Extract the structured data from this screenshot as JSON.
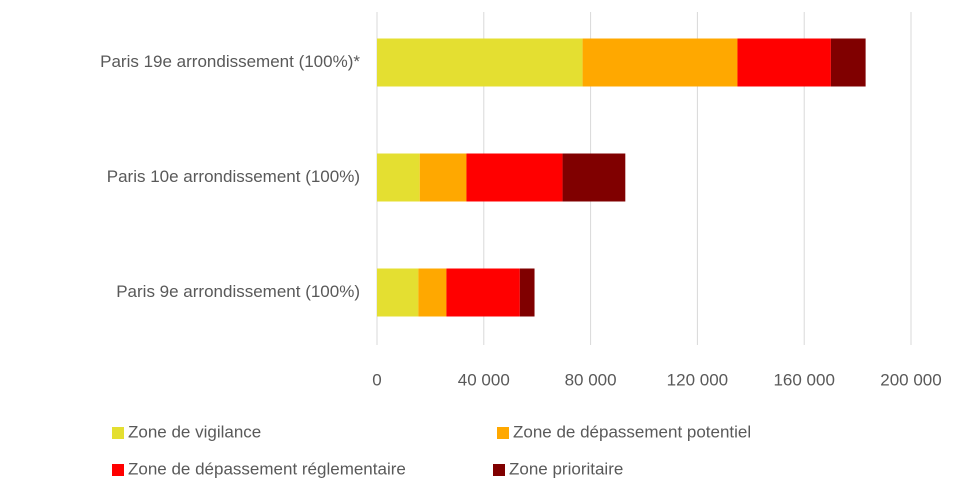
{
  "chart_data": {
    "type": "stacked-barh",
    "categories": [
      "Paris 19e  arrondissement (100%)*",
      "Paris 10e  arrondissement (100%)",
      "Paris 9e  arrondissement (100%)"
    ],
    "series": [
      {
        "name": "Zone de vigilance",
        "color": "#e4df31",
        "values": [
          77000,
          16000,
          15500
        ]
      },
      {
        "name": "Zone de dépassement potentiel",
        "color": "#ffa800",
        "values": [
          58000,
          17500,
          10500
        ]
      },
      {
        "name": "Zone de dépassement réglementaire",
        "color": "#ff0000",
        "values": [
          35000,
          36000,
          27500
        ]
      },
      {
        "name": "Zone prioritaire",
        "color": "#800000",
        "values": [
          13000,
          23500,
          5500
        ]
      }
    ],
    "xlim": [
      0,
      200000
    ],
    "xticks": [
      0,
      {
        "value": 40000,
        "label": "40 000"
      },
      {
        "value": 80000,
        "label": "80 000"
      },
      {
        "value": 120000,
        "label": "120 000"
      },
      {
        "value": 160000,
        "label": "160 000"
      },
      {
        "value": 200000,
        "label": "200 000"
      }
    ],
    "grid": true
  }
}
